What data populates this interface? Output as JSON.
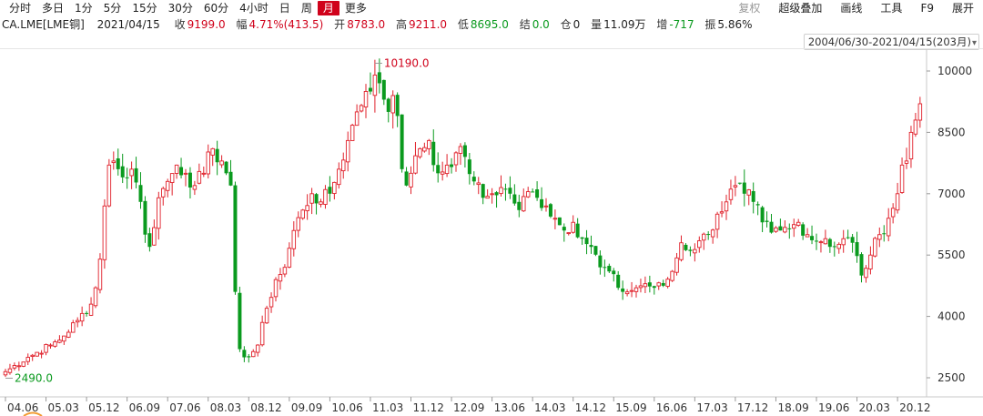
{
  "periods": [
    "分时",
    "多日",
    "1分",
    "5分",
    "15分",
    "30分",
    "60分",
    "4小时",
    "日",
    "周",
    "月",
    "更多"
  ],
  "active_period": "月",
  "tools": [
    {
      "label": "复权",
      "disabled": true
    },
    {
      "label": "超级叠加",
      "disabled": false
    },
    {
      "label": "画线",
      "disabled": false
    },
    {
      "label": "工具",
      "disabled": false
    },
    {
      "label": "F9",
      "disabled": false
    },
    {
      "label": "展开",
      "disabled": false
    }
  ],
  "quote": {
    "symbol": "CA.LME[LME铜]",
    "date": "2021/04/15",
    "close_label": "收",
    "close": "9199.0",
    "change_label": "幅",
    "change": "4.71%(413.5)",
    "open_label": "开",
    "open": "8783.0",
    "high_label": "高",
    "high": "9211.0",
    "low_label": "低",
    "low": "8695.0",
    "settle_label": "结",
    "settle": "0.0",
    "oi_label": "仓",
    "oi": "0",
    "vol_label": "量",
    "vol": "11.09万",
    "inc_label": "增",
    "inc": "-717",
    "amp_label": "振",
    "amp": "5.86%"
  },
  "range_label": "2004/06/30-2021/04/15(203月)",
  "colors": {
    "up": "#e0202a",
    "down": "#0a9a1e",
    "axis": "#c8c8c8",
    "grid": "#eeeeee"
  },
  "chart_data": {
    "type": "candlestick",
    "ylim": [
      2000,
      10500
    ],
    "y_ticks": [
      10000,
      8500,
      7000,
      5500,
      4000,
      2500
    ],
    "x_tick_labels": [
      "04.06",
      "05.03",
      "05.12",
      "06.09",
      "07.06",
      "08.03",
      "08.12",
      "09.09",
      "10.06",
      "11.03",
      "11.12",
      "12.09",
      "13.06",
      "14.03",
      "14.12",
      "15.09",
      "16.06",
      "17.03",
      "17.12",
      "18.09",
      "19.06",
      "20.03",
      "20.12"
    ],
    "x_tick_months": [
      0,
      9,
      18,
      27,
      36,
      45,
      54,
      63,
      72,
      81,
      90,
      99,
      108,
      117,
      126,
      135,
      144,
      153,
      162,
      171,
      180,
      189,
      198
    ],
    "annotations": [
      {
        "label": "10190.0",
        "month": 82,
        "value": 10190,
        "color": "red"
      },
      {
        "label": "2490.0",
        "month": 0,
        "value": 2490,
        "color": "green"
      }
    ],
    "keypoints": [
      [
        0,
        2650
      ],
      [
        5,
        3000
      ],
      [
        10,
        3300
      ],
      [
        12,
        3420
      ],
      [
        16,
        3900
      ],
      [
        19,
        4300
      ],
      [
        20,
        4700
      ],
      [
        21,
        5400
      ],
      [
        22,
        6700
      ],
      [
        23,
        7700
      ],
      [
        24,
        7800
      ],
      [
        26,
        7400
      ],
      [
        28,
        7600
      ],
      [
        30,
        6800
      ],
      [
        31,
        6000
      ],
      [
        32,
        5700
      ],
      [
        34,
        6900
      ],
      [
        36,
        7300
      ],
      [
        38,
        7700
      ],
      [
        40,
        7500
      ],
      [
        42,
        7200
      ],
      [
        44,
        7500
      ],
      [
        46,
        8100
      ],
      [
        48,
        7800
      ],
      [
        49,
        7500
      ],
      [
        50,
        7200
      ],
      [
        51,
        4600
      ],
      [
        52,
        3200
      ],
      [
        53,
        3000
      ],
      [
        54,
        3000
      ],
      [
        56,
        3300
      ],
      [
        58,
        4200
      ],
      [
        60,
        4900
      ],
      [
        62,
        5200
      ],
      [
        64,
        6100
      ],
      [
        66,
        6600
      ],
      [
        68,
        7000
      ],
      [
        70,
        6800
      ],
      [
        72,
        7000
      ],
      [
        74,
        7600
      ],
      [
        76,
        8300
      ],
      [
        78,
        9000
      ],
      [
        80,
        9500
      ],
      [
        82,
        9900
      ],
      [
        83,
        9700
      ],
      [
        84,
        9300
      ],
      [
        85,
        9000
      ],
      [
        86,
        9400
      ],
      [
        87,
        8900
      ],
      [
        88,
        7600
      ],
      [
        89,
        7200
      ],
      [
        90,
        7500
      ],
      [
        92,
        8100
      ],
      [
        94,
        8300
      ],
      [
        95,
        7700
      ],
      [
        96,
        7500
      ],
      [
        98,
        7700
      ],
      [
        100,
        8000
      ],
      [
        102,
        7900
      ],
      [
        104,
        7300
      ],
      [
        106,
        6900
      ],
      [
        108,
        7000
      ],
      [
        110,
        7150
      ],
      [
        112,
        7000
      ],
      [
        114,
        6600
      ],
      [
        116,
        7050
      ],
      [
        118,
        6900
      ],
      [
        120,
        6700
      ],
      [
        122,
        6400
      ],
      [
        124,
        6100
      ],
      [
        126,
        6300
      ],
      [
        128,
        5900
      ],
      [
        130,
        5700
      ],
      [
        132,
        5200
      ],
      [
        134,
        5100
      ],
      [
        136,
        4700
      ],
      [
        138,
        4600
      ],
      [
        140,
        4700
      ],
      [
        142,
        4800
      ],
      [
        144,
        4700
      ],
      [
        146,
        4750
      ],
      [
        148,
        5100
      ],
      [
        150,
        5800
      ],
      [
        152,
        5600
      ],
      [
        154,
        5850
      ],
      [
        156,
        6000
      ],
      [
        158,
        6500
      ],
      [
        160,
        6800
      ],
      [
        162,
        7200
      ],
      [
        164,
        7000
      ],
      [
        166,
        6800
      ],
      [
        168,
        6300
      ],
      [
        170,
        6050
      ],
      [
        172,
        6100
      ],
      [
        174,
        6150
      ],
      [
        176,
        6300
      ],
      [
        178,
        6000
      ],
      [
        180,
        5850
      ],
      [
        182,
        5900
      ],
      [
        184,
        5700
      ],
      [
        186,
        5900
      ],
      [
        188,
        5800
      ],
      [
        190,
        5000
      ],
      [
        192,
        5500
      ],
      [
        194,
        6000
      ],
      [
        196,
        6400
      ],
      [
        198,
        7000
      ],
      [
        199,
        7700
      ],
      [
        200,
        7800
      ],
      [
        201,
        8500
      ],
      [
        202,
        8800
      ],
      [
        203,
        9199
      ]
    ]
  }
}
